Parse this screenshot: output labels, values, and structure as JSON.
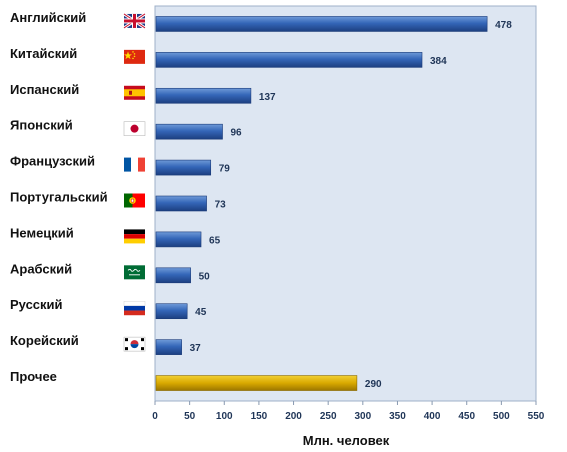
{
  "chart_data": {
    "type": "bar",
    "orientation": "horizontal",
    "categories": [
      "Английский",
      "Китайский",
      "Испанский",
      "Японский",
      "Французский",
      "Португальский",
      "Немецкий",
      "Арабский",
      "Русский",
      "Корейский",
      "Прочее"
    ],
    "values": [
      478,
      384,
      137,
      96,
      79,
      73,
      65,
      50,
      45,
      37,
      290
    ],
    "flags": [
      "uk-flag-icon",
      "china-flag-icon",
      "spain-flag-icon",
      "japan-flag-icon",
      "france-flag-icon",
      "portugal-flag-icon",
      "germany-flag-icon",
      "saudi-arabia-flag-icon",
      "russia-flag-icon",
      "south-korea-flag-icon",
      ""
    ],
    "colors": [
      "#2f5fae",
      "#2f5fae",
      "#2f5fae",
      "#2f5fae",
      "#2f5fae",
      "#2f5fae",
      "#2f5fae",
      "#2f5fae",
      "#2f5fae",
      "#2f5fae",
      "#d7a900"
    ],
    "xticks": [
      0,
      50,
      100,
      150,
      200,
      250,
      300,
      350,
      400,
      450,
      500,
      550
    ],
    "xlim": [
      0,
      550
    ],
    "xlabel": "Млн. человек",
    "grid": false,
    "background": "#dde6f2"
  }
}
